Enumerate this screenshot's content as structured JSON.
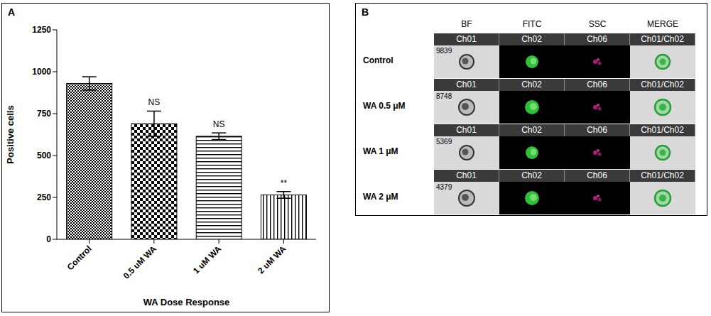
{
  "panel_labels": [
    "A",
    "B"
  ],
  "chart_data": {
    "type": "bar",
    "categories": [
      "Control",
      "0.5 uM WA",
      "1 uM WA",
      "2 uM WA"
    ],
    "values": [
      930,
      690,
      615,
      265
    ],
    "errors": [
      40,
      75,
      20,
      20
    ],
    "annotations": [
      {
        "category": "0.5 uM WA",
        "text": "NS"
      },
      {
        "category": "1 uM WA",
        "text": "NS"
      },
      {
        "category": "2 uM WA",
        "text": "**"
      }
    ],
    "x_label": "WA Dose Response",
    "y_label": "Positive cells",
    "ylim": [
      0,
      1250
    ],
    "yticks": [
      0,
      250,
      500,
      750,
      1000,
      1250
    ],
    "color": "#000000",
    "grid": false
  },
  "image_grid": {
    "columns": [
      "BF",
      "FITC",
      "SSC",
      "MERGE"
    ],
    "rows": [
      {
        "label": "Control",
        "object_number": 9839,
        "channels": [
          "Ch01",
          "Ch02",
          "Ch06",
          "Ch01/Ch02"
        ]
      },
      {
        "label": "WA 0.5 μM",
        "object_number": 8748,
        "channels": [
          "Ch01",
          "Ch02",
          "Ch06",
          "Ch01/Ch02"
        ]
      },
      {
        "label": "WA 1 μM",
        "object_number": 5369,
        "channels": [
          "Ch01",
          "Ch02",
          "Ch06",
          "Ch01/Ch02"
        ]
      },
      {
        "label": "WA 2 μM",
        "object_number": 4379,
        "channels": [
          "Ch01",
          "Ch02",
          "Ch06",
          "Ch01/Ch02"
        ]
      }
    ]
  }
}
